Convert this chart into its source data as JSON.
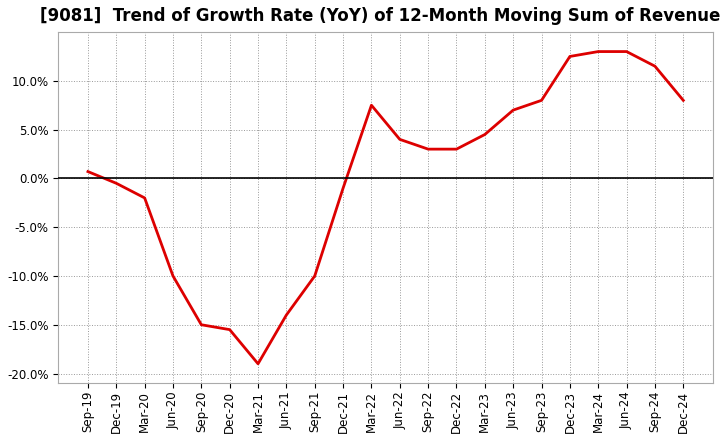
{
  "title": "[9081]  Trend of Growth Rate (YoY) of 12-Month Moving Sum of Revenues",
  "x_labels": [
    "Sep-19",
    "Dec-19",
    "Mar-20",
    "Jun-20",
    "Sep-20",
    "Dec-20",
    "Mar-21",
    "Jun-21",
    "Sep-21",
    "Dec-21",
    "Mar-22",
    "Jun-22",
    "Sep-22",
    "Dec-22",
    "Mar-23",
    "Jun-23",
    "Sep-23",
    "Dec-23",
    "Mar-24",
    "Jun-24",
    "Sep-24",
    "Dec-24"
  ],
  "y_values": [
    0.7,
    -0.5,
    -2.0,
    -10.0,
    -15.0,
    -15.5,
    -19.0,
    -14.0,
    -10.0,
    -1.0,
    7.5,
    4.0,
    3.0,
    3.0,
    4.5,
    7.0,
    8.0,
    12.5,
    13.0,
    13.0,
    11.5,
    8.0
  ],
  "line_color": "#dd0000",
  "line_width": 2.0,
  "ylim": [
    -21,
    15
  ],
  "yticks": [
    -20.0,
    -15.0,
    -10.0,
    -5.0,
    0.0,
    5.0,
    10.0
  ],
  "background_color": "#ffffff",
  "plot_bg_color": "#ffffff",
  "grid_color": "#999999",
  "title_fontsize": 12,
  "axis_fontsize": 8.5
}
